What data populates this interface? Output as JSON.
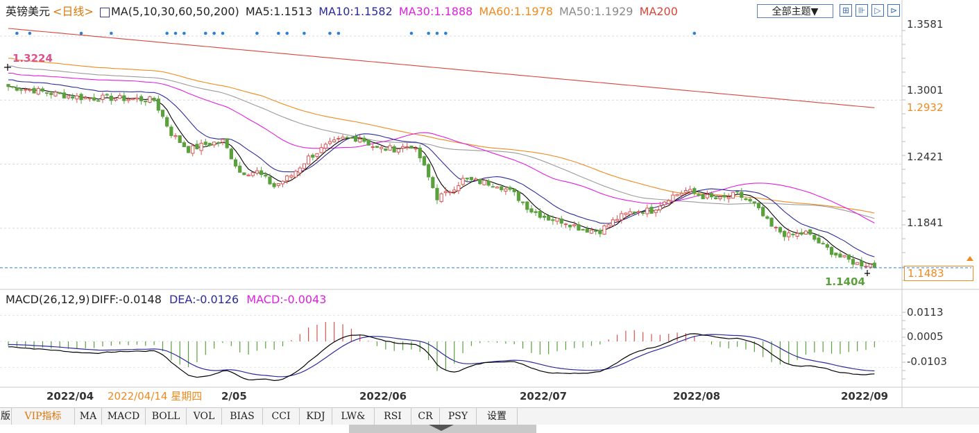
{
  "legend": {
    "symbol": "英镑美元",
    "period": "<日线>",
    "ma_params": "MA(5,10,30,60,50,200)",
    "ma5": "MA5:1.1513",
    "ma10": "MA10:1.1582",
    "ma30": "MA30:1.1888",
    "ma60": "MA60:1.1978",
    "ma50": "MA50:1.1929",
    "ma200": "MA200"
  },
  "toolbar": {
    "theme_label": "全部主题▼",
    "buttons": [
      "⊞",
      "⊪",
      "▷",
      "⊳"
    ]
  },
  "macd_legend": {
    "params": "MACD(26,12,9)",
    "diff": "DIFF:-0.0148",
    "dea": "DEA:-0.0126",
    "macd": "MACD:-0.0043"
  },
  "price_axis": {
    "labels": [
      "1.3581",
      "1.3001",
      "1.2421",
      "1.1841"
    ],
    "ma_value": "1.2932",
    "current": "1.1483"
  },
  "macd_axis": {
    "labels": [
      "0.0113",
      "0.0005",
      "-0.0103"
    ]
  },
  "annotations": {
    "high": "1.3224",
    "low": "1.1404"
  },
  "date_axis": {
    "labels": [
      "2022/04",
      "2022/06",
      "2022/07",
      "2022/08",
      "2022/09"
    ],
    "cursor_date": "2022/04/14 星期四",
    "partial_label": "2/05"
  },
  "tabs": [
    "版",
    "VIP指标",
    "MA",
    "MACD",
    "BOLL",
    "VOL",
    "BIAS",
    "CCI",
    "KDJ",
    "LW&",
    "RSI",
    "CR",
    "PSY",
    "设置"
  ],
  "colors": {
    "up": "#d9534f",
    "down": "#5aa03c",
    "ma5": "#000000",
    "ma10": "#2a2a9c",
    "ma30": "#e020e0",
    "ma60": "#f08a1e",
    "ma50": "#9a9a9a",
    "ma200": "#d6463a",
    "current_line": "#2f7fd6",
    "diff": "#000000",
    "dea": "#2a2a9c",
    "macd_label": "#e020e0"
  },
  "chart_data": {
    "type": "candlestick",
    "symbol": "英镑美元",
    "y_range": [
      1.135,
      1.37
    ],
    "dates": [
      "2022/04",
      "2022/06",
      "2022/07",
      "2022/08",
      "2022/09"
    ],
    "close_anchors": [
      [
        0,
        1.3124
      ],
      [
        6,
        1.309
      ],
      [
        12,
        1.305
      ],
      [
        18,
        1.302
      ],
      [
        24,
        1.302
      ],
      [
        30,
        1.301
      ],
      [
        34,
        1.3
      ],
      [
        38,
        1.27
      ],
      [
        42,
        1.255
      ],
      [
        46,
        1.26
      ],
      [
        50,
        1.263
      ],
      [
        54,
        1.235
      ],
      [
        58,
        1.235
      ],
      [
        62,
        1.222
      ],
      [
        66,
        1.232
      ],
      [
        70,
        1.248
      ],
      [
        74,
        1.258
      ],
      [
        78,
        1.265
      ],
      [
        82,
        1.266
      ],
      [
        86,
        1.256
      ],
      [
        90,
        1.256
      ],
      [
        94,
        1.259
      ],
      [
        96,
        1.248
      ],
      [
        100,
        1.212
      ],
      [
        102,
        1.215
      ],
      [
        106,
        1.228
      ],
      [
        110,
        1.226
      ],
      [
        114,
        1.224
      ],
      [
        118,
        1.215
      ],
      [
        122,
        1.2
      ],
      [
        126,
        1.193
      ],
      [
        130,
        1.19
      ],
      [
        134,
        1.183
      ],
      [
        138,
        1.182
      ],
      [
        142,
        1.193
      ],
      [
        146,
        1.2
      ],
      [
        150,
        1.2
      ],
      [
        154,
        1.212
      ],
      [
        158,
        1.218
      ],
      [
        162,
        1.213
      ],
      [
        166,
        1.21
      ],
      [
        170,
        1.215
      ],
      [
        174,
        1.205
      ],
      [
        178,
        1.185
      ],
      [
        182,
        1.177
      ],
      [
        186,
        1.18
      ],
      [
        190,
        1.168
      ],
      [
        194,
        1.158
      ],
      [
        198,
        1.152
      ],
      [
        202,
        1.151
      ]
    ],
    "ma_last": {
      "MA5": 1.1513,
      "MA10": 1.1582,
      "MA30": 1.1888,
      "MA60": 1.1978,
      "MA50": 1.1929
    },
    "ma_first": {
      "MA5": 1.3124,
      "MA10": 1.3185,
      "MA30": 1.3245,
      "MA60": 1.338,
      "MA50": 1.331,
      "MA200": 1.365
    },
    "ma200_last": 1.2932,
    "macd": {
      "y_range": [
        -0.018,
        0.0155
      ],
      "labels": [
        0.0113,
        0.0005,
        -0.0103
      ],
      "diff": -0.0148,
      "dea": -0.0126,
      "macd": -0.0043
    },
    "high_label": 1.3224,
    "low_label": 1.1404,
    "current_price": 1.1483
  }
}
